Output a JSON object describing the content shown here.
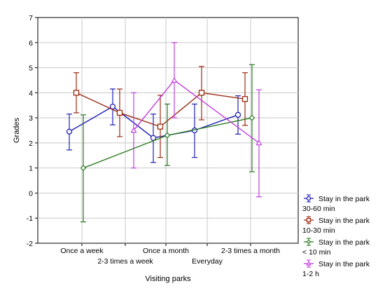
{
  "chart_data": {
    "type": "line",
    "title": "",
    "xlabel": "Visiting parks",
    "ylabel": "Grades",
    "categories": [
      "Once a week",
      "2-3 times a week",
      "Once a month",
      "Everyday",
      "2-3 times a month"
    ],
    "ylim": [
      -2,
      7
    ],
    "yticks": [
      "-2",
      "-1",
      "0",
      "1",
      "2",
      "3",
      "4",
      "5",
      "6",
      "7"
    ],
    "grid": true,
    "legend_placement": "bottom-right",
    "series": [
      {
        "name": "Stay in the park\n30-60 min",
        "legend_line1": "Stay in the park",
        "legend_line2": "30-60 min",
        "color": "#1f1fb4",
        "marker": "circle",
        "values": [
          2.45,
          3.45,
          2.2,
          2.5,
          3.12
        ],
        "err_low": [
          1.72,
          2.72,
          1.22,
          1.42,
          2.35
        ],
        "err_high": [
          3.15,
          4.15,
          3.15,
          3.55,
          3.88
        ]
      },
      {
        "name": "Stay in the park\n10-30 min",
        "legend_line1": "Stay in the park",
        "legend_line2": "10-30 min",
        "color": "#9c2a12",
        "marker": "square",
        "values": [
          4.0,
          3.2,
          2.65,
          4.0,
          3.75
        ],
        "err_low": [
          3.2,
          2.25,
          1.42,
          2.92,
          2.7
        ],
        "err_high": [
          4.8,
          4.15,
          3.9,
          5.05,
          4.8
        ]
      },
      {
        "name": "Stay in the park\n< 10 min",
        "legend_line1": "Stay in the park",
        "legend_line2": "< 10 min",
        "color": "#2a7a1f",
        "marker": "diamond",
        "values": [
          1.0,
          null,
          2.3,
          null,
          3.0
        ],
        "err_low": [
          -1.15,
          null,
          1.1,
          null,
          0.85
        ],
        "err_high": [
          3.12,
          null,
          3.55,
          null,
          5.12
        ]
      },
      {
        "name": "Stay in the park\n1-2 h",
        "legend_line1": "Stay in the park",
        "legend_line2": "1-2 h",
        "color": "#c23ee0",
        "marker": "triangle",
        "values": [
          null,
          2.5,
          4.5,
          null,
          2.0
        ],
        "err_low": [
          null,
          1.0,
          3.0,
          null,
          -0.15
        ],
        "err_high": [
          null,
          4.0,
          6.0,
          null,
          4.12
        ]
      }
    ]
  }
}
